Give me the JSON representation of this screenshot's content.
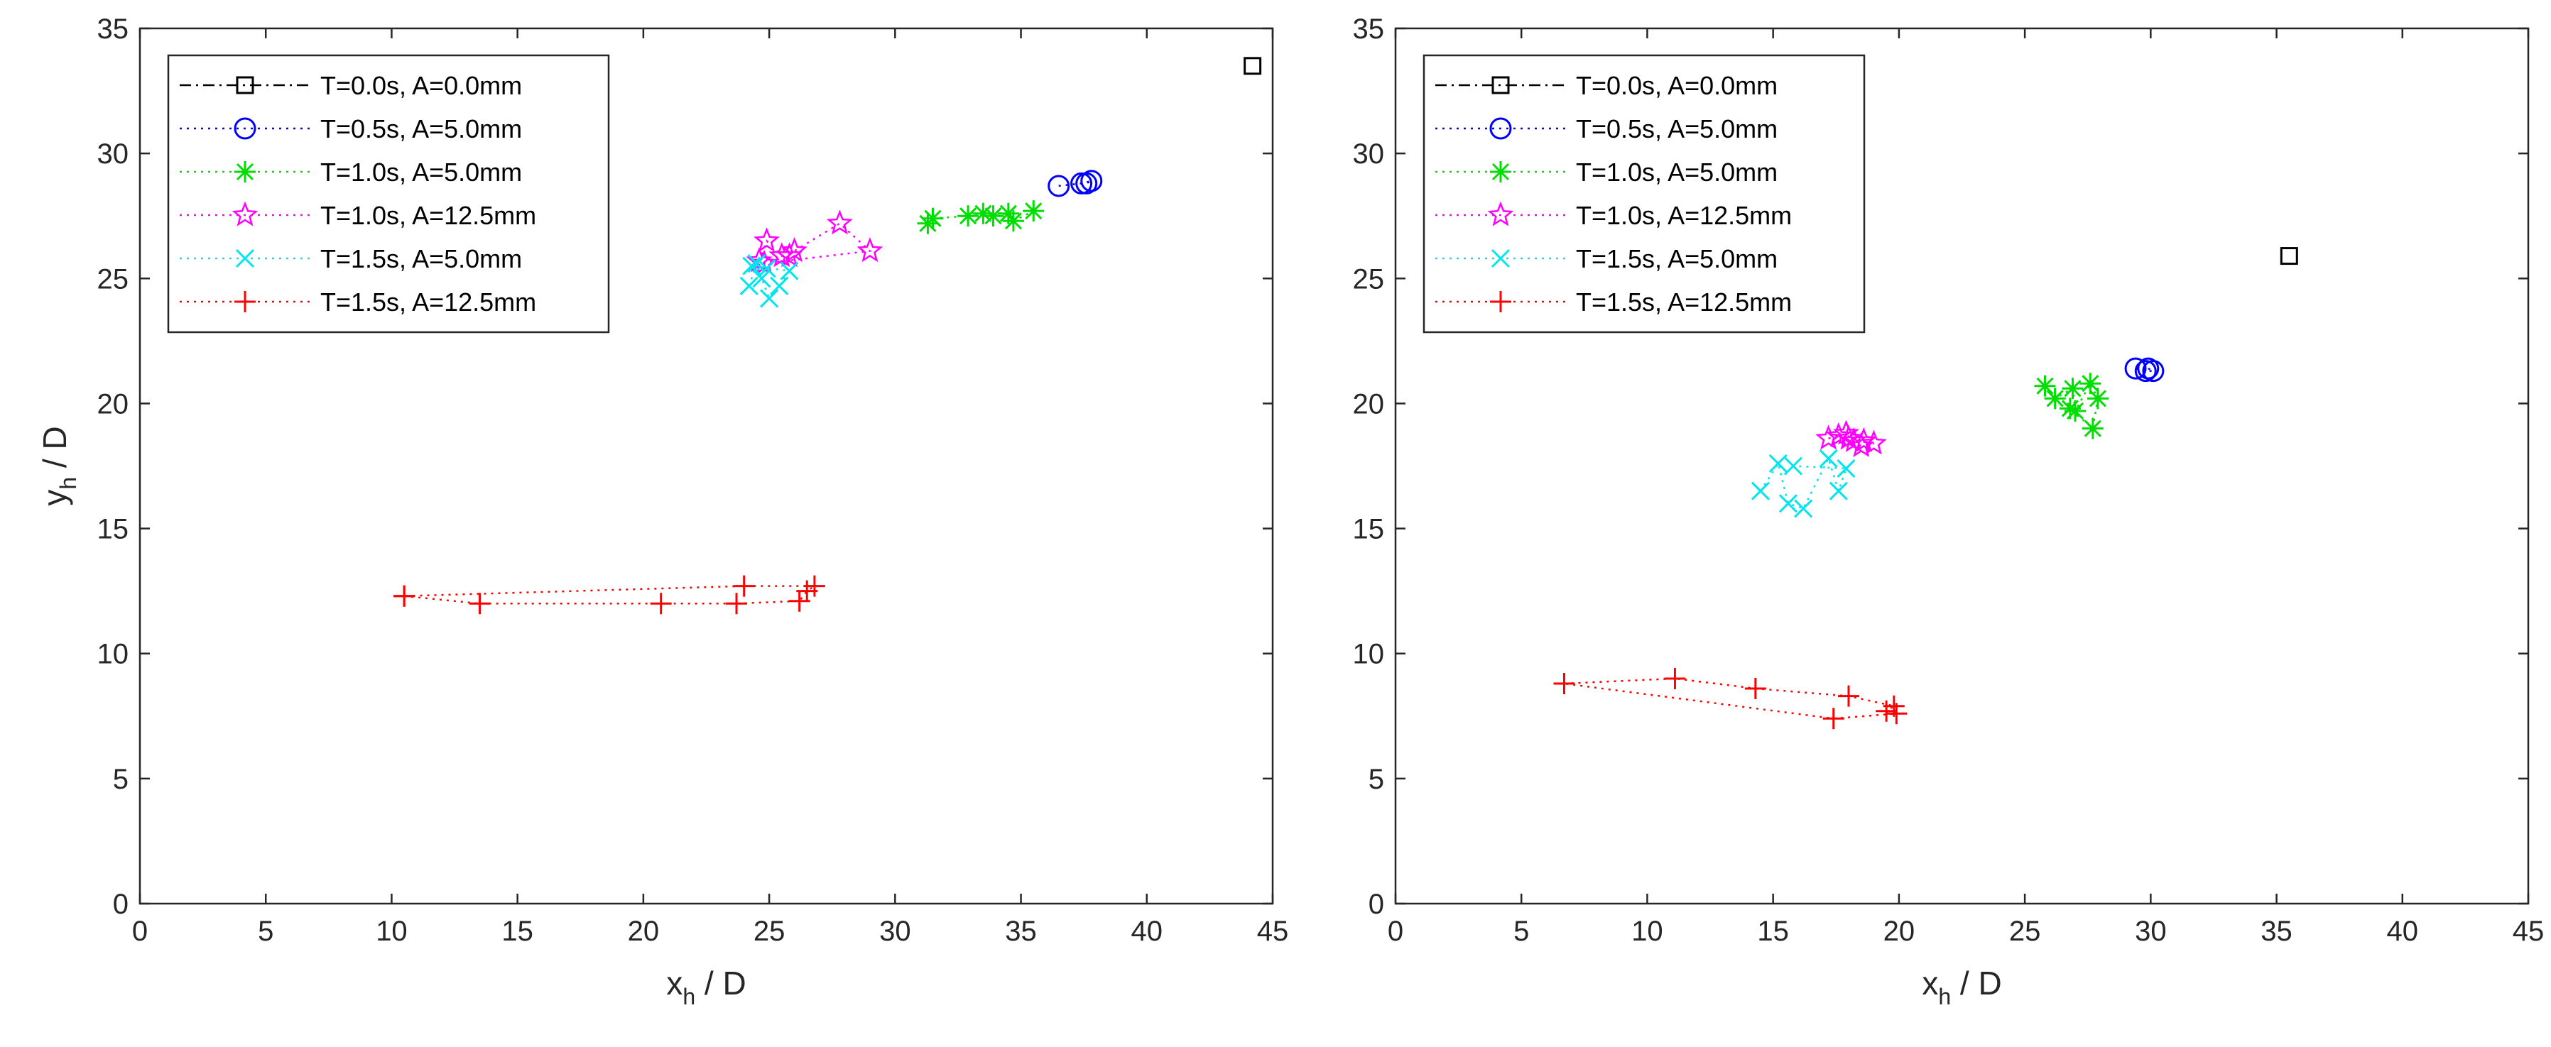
{
  "chart_data": [
    {
      "type": "scatter",
      "title": "",
      "xlabel": "x",
      "xlabel_sub": "h",
      "xlabel_suffix": " / D",
      "ylabel": "y",
      "ylabel_sub": "h",
      "ylabel_suffix": " / D",
      "show_ylabel": true,
      "xlim": [
        0,
        45
      ],
      "ylim": [
        0,
        35
      ],
      "xticks": [
        0,
        5,
        10,
        15,
        20,
        25,
        30,
        35,
        40,
        45
      ],
      "yticks": [
        0,
        5,
        10,
        15,
        20,
        25,
        30,
        35
      ],
      "xtick_labels": [
        "0",
        "5",
        "10",
        "15",
        "20",
        "25",
        "30",
        "35",
        "40",
        "45"
      ],
      "ytick_labels": [
        "0",
        "5",
        "10",
        "15",
        "20",
        "25",
        "30",
        "35"
      ],
      "grid": false,
      "legend_position": "top-left",
      "series": [
        {
          "name": "T=0.0s, A=0.0mm",
          "color": "#000000",
          "marker": "square",
          "line": "dashdot",
          "x": [
            44.2
          ],
          "y": [
            33.5
          ]
        },
        {
          "name": "T=0.5s, A=5.0mm",
          "color": "#0000ff",
          "marker": "circle",
          "line": "dotted",
          "x": [
            36.5,
            37.4,
            37.8,
            37.6
          ],
          "y": [
            28.7,
            28.8,
            28.9,
            28.8
          ]
        },
        {
          "name": "T=1.0s, A=5.0mm",
          "color": "#00dd00",
          "marker": "asterisk",
          "line": "dotted",
          "x": [
            31.3,
            31.5,
            32.9,
            33.5,
            33.9,
            34.5,
            34.7,
            35.5
          ],
          "y": [
            27.2,
            27.4,
            27.5,
            27.6,
            27.5,
            27.6,
            27.3,
            27.7
          ]
        },
        {
          "name": "T=1.0s, A=12.5mm",
          "color": "#ff00ff",
          "marker": "star",
          "line": "dotted",
          "x": [
            24.6,
            24.9,
            25.5,
            26.0,
            27.8,
            29.0,
            24.8,
            25.8
          ],
          "y": [
            25.7,
            26.5,
            25.9,
            26.1,
            27.2,
            26.1,
            25.6,
            25.9
          ]
        },
        {
          "name": "T=1.5s, A=5.0mm",
          "color": "#00e5ee",
          "marker": "x",
          "line": "dotted",
          "x": [
            24.2,
            24.5,
            24.7,
            25.0,
            25.4,
            25.8,
            24.3,
            24.9
          ],
          "y": [
            24.7,
            25.6,
            25.0,
            24.2,
            24.7,
            25.3,
            25.5,
            25.4
          ]
        },
        {
          "name": "T=1.5s, A=12.5mm",
          "color": "#ff0000",
          "marker": "plus",
          "line": "dotted",
          "x": [
            10.5,
            13.5,
            20.7,
            23.7,
            26.2,
            26.5,
            26.8,
            24.0,
            10.5
          ],
          "y": [
            12.3,
            12.0,
            12.0,
            12.0,
            12.1,
            12.5,
            12.7,
            12.7,
            12.3
          ]
        }
      ]
    },
    {
      "type": "scatter",
      "title": "",
      "xlabel": "x",
      "xlabel_sub": "h",
      "xlabel_suffix": " / D",
      "ylabel": "",
      "ylabel_sub": "",
      "ylabel_suffix": "",
      "show_ylabel": false,
      "xlim": [
        0,
        45
      ],
      "ylim": [
        0,
        35
      ],
      "xticks": [
        0,
        5,
        10,
        15,
        20,
        25,
        30,
        35,
        40,
        45
      ],
      "yticks": [
        0,
        5,
        10,
        15,
        20,
        25,
        30,
        35
      ],
      "xtick_labels": [
        "0",
        "5",
        "10",
        "15",
        "20",
        "25",
        "30",
        "35",
        "40",
        "45"
      ],
      "ytick_labels": [
        "0",
        "5",
        "10",
        "15",
        "20",
        "25",
        "30",
        "35"
      ],
      "grid": false,
      "legend_position": "top-left",
      "series": [
        {
          "name": "T=0.0s, A=0.0mm",
          "color": "#000000",
          "marker": "square",
          "line": "dashdot",
          "x": [
            35.5
          ],
          "y": [
            25.9
          ]
        },
        {
          "name": "T=0.5s, A=5.0mm",
          "color": "#0000ff",
          "marker": "circle",
          "line": "dotted",
          "x": [
            29.4,
            29.8,
            30.1,
            29.9
          ],
          "y": [
            21.4,
            21.3,
            21.3,
            21.4
          ]
        },
        {
          "name": "T=1.0s, A=5.0mm",
          "color": "#00dd00",
          "marker": "asterisk",
          "line": "dotted",
          "x": [
            25.8,
            26.2,
            26.9,
            27.0,
            27.6,
            27.9,
            27.7,
            26.8
          ],
          "y": [
            20.7,
            20.2,
            20.6,
            19.7,
            20.8,
            20.2,
            19.0,
            19.8
          ]
        },
        {
          "name": "T=1.0s, A=12.5mm",
          "color": "#ff00ff",
          "marker": "star",
          "line": "dotted",
          "x": [
            17.2,
            17.9,
            18.2,
            18.5,
            19.0,
            17.6,
            18.0,
            18.6
          ],
          "y": [
            18.6,
            18.8,
            18.5,
            18.3,
            18.4,
            18.7,
            18.6,
            18.5
          ]
        },
        {
          "name": "T=1.5s, A=5.0mm",
          "color": "#00e5ee",
          "marker": "x",
          "line": "dotted",
          "x": [
            14.5,
            15.2,
            15.6,
            16.2,
            17.2,
            17.6,
            17.9,
            15.8
          ],
          "y": [
            16.5,
            17.6,
            16.0,
            15.8,
            17.8,
            16.5,
            17.4,
            17.5
          ]
        },
        {
          "name": "T=1.5s, A=12.5mm",
          "color": "#ff0000",
          "marker": "plus",
          "line": "dotted",
          "x": [
            6.7,
            11.1,
            14.3,
            18.0,
            19.8,
            19.5,
            19.9,
            17.4,
            6.7
          ],
          "y": [
            8.8,
            9.0,
            8.6,
            8.3,
            7.9,
            7.7,
            7.6,
            7.4,
            8.8
          ]
        }
      ]
    }
  ]
}
